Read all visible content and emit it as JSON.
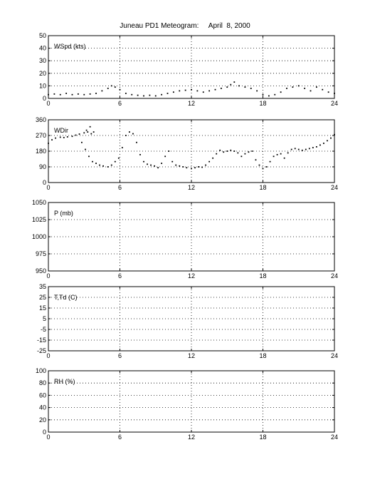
{
  "title": "Juneau PD1 Meteogram:     April  8, 2000",
  "chart_data": [
    {
      "type": "scatter",
      "label": "WSpd (kts)",
      "xlim": [
        0,
        24
      ],
      "xticks": [
        0,
        6,
        12,
        18,
        24
      ],
      "ylim": [
        0,
        50
      ],
      "yticks": [
        0,
        10,
        20,
        30,
        40,
        50
      ],
      "grid": true,
      "series": [
        {
          "points": [
            [
              0,
              3
            ],
            [
              0.5,
              3.5
            ],
            [
              1,
              3
            ],
            [
              1.5,
              4
            ],
            [
              2,
              3
            ],
            [
              2.5,
              3.5
            ],
            [
              3,
              3
            ],
            [
              3.5,
              3.5
            ],
            [
              4,
              4
            ],
            [
              4.5,
              6
            ],
            [
              5,
              8
            ],
            [
              5.3,
              10
            ],
            [
              5.6,
              9
            ],
            [
              6,
              7
            ],
            [
              6.5,
              4
            ],
            [
              7,
              3
            ],
            [
              7.5,
              2.5
            ],
            [
              8,
              2
            ],
            [
              8.5,
              2.5
            ],
            [
              9,
              2
            ],
            [
              9.5,
              3
            ],
            [
              10,
              4
            ],
            [
              10.5,
              5
            ],
            [
              11,
              6
            ],
            [
              11.5,
              6.5
            ],
            [
              12,
              7
            ],
            [
              12.5,
              6
            ],
            [
              13,
              5
            ],
            [
              13.5,
              6
            ],
            [
              14,
              7
            ],
            [
              14.5,
              8
            ],
            [
              15,
              9
            ],
            [
              15.3,
              11
            ],
            [
              15.6,
              13
            ],
            [
              16,
              10
            ],
            [
              16.5,
              9
            ],
            [
              17,
              8
            ],
            [
              17.5,
              6
            ],
            [
              18,
              3
            ],
            [
              18.5,
              2
            ],
            [
              19,
              3
            ],
            [
              19.5,
              5
            ],
            [
              20,
              8
            ],
            [
              20.5,
              9
            ],
            [
              21,
              10
            ],
            [
              21.5,
              8
            ],
            [
              22,
              6
            ],
            [
              22.5,
              9
            ],
            [
              23,
              7
            ],
            [
              23.5,
              5
            ],
            [
              24,
              4
            ]
          ]
        }
      ]
    },
    {
      "type": "scatter",
      "label": "WDir",
      "xlim": [
        0,
        24
      ],
      "xticks": [
        0,
        6,
        12,
        18,
        24
      ],
      "ylim": [
        0,
        360
      ],
      "yticks": [
        0,
        90,
        180,
        270,
        360
      ],
      "grid": true,
      "series": [
        {
          "points": [
            [
              0,
              225
            ],
            [
              0.3,
              245
            ],
            [
              0.6,
              255
            ],
            [
              1,
              260
            ],
            [
              1.3,
              258
            ],
            [
              1.6,
              262
            ],
            [
              2,
              265
            ],
            [
              2.3,
              272
            ],
            [
              2.6,
              278
            ],
            [
              3,
              285
            ],
            [
              3.3,
              290
            ],
            [
              3.6,
              280
            ],
            [
              2.8,
              230
            ],
            [
              3.1,
              190
            ],
            [
              3.4,
              150
            ],
            [
              3.7,
              120
            ],
            [
              3.2,
              300
            ],
            [
              3.5,
              320
            ],
            [
              3.8,
              290
            ],
            [
              4,
              110
            ],
            [
              4.3,
              100
            ],
            [
              4.6,
              95
            ],
            [
              5,
              90
            ],
            [
              5.3,
              100
            ],
            [
              5.6,
              120
            ],
            [
              5.9,
              140
            ],
            [
              6.2,
              200
            ],
            [
              6.5,
              270
            ],
            [
              6.8,
              290
            ],
            [
              7.1,
              280
            ],
            [
              7.4,
              230
            ],
            [
              7.7,
              160
            ],
            [
              8,
              120
            ],
            [
              8.3,
              105
            ],
            [
              8.6,
              100
            ],
            [
              8.9,
              95
            ],
            [
              9.2,
              85
            ],
            [
              9.5,
              110
            ],
            [
              9.8,
              150
            ],
            [
              10.1,
              180
            ],
            [
              10.4,
              120
            ],
            [
              10.7,
              100
            ],
            [
              11,
              95
            ],
            [
              11.3,
              90
            ],
            [
              11.6,
              85
            ],
            [
              12,
              80
            ],
            [
              12.3,
              85
            ],
            [
              12.6,
              90
            ],
            [
              12.9,
              88
            ],
            [
              13.2,
              100
            ],
            [
              13.5,
              120
            ],
            [
              13.8,
              140
            ],
            [
              14.1,
              165
            ],
            [
              14.4,
              185
            ],
            [
              14.7,
              175
            ],
            [
              15,
              180
            ],
            [
              15.3,
              185
            ],
            [
              15.6,
              180
            ],
            [
              15.9,
              170
            ],
            [
              16.2,
              150
            ],
            [
              16.5,
              165
            ],
            [
              16.8,
              175
            ],
            [
              17.1,
              180
            ],
            [
              17.4,
              130
            ],
            [
              17.7,
              100
            ],
            [
              18,
              80
            ],
            [
              18.3,
              90
            ],
            [
              18.6,
              120
            ],
            [
              18.9,
              150
            ],
            [
              19.2,
              160
            ],
            [
              19.5,
              165
            ],
            [
              19.8,
              140
            ],
            [
              20.1,
              170
            ],
            [
              20.4,
              190
            ],
            [
              20.7,
              195
            ],
            [
              21,
              190
            ],
            [
              21.3,
              185
            ],
            [
              21.6,
              190
            ],
            [
              21.9,
              195
            ],
            [
              22.2,
              200
            ],
            [
              22.5,
              205
            ],
            [
              22.8,
              215
            ],
            [
              23.1,
              225
            ],
            [
              23.4,
              240
            ],
            [
              23.7,
              255
            ],
            [
              24,
              275
            ]
          ]
        }
      ]
    },
    {
      "type": "scatter",
      "label": "P (mb)",
      "xlim": [
        0,
        24
      ],
      "xticks": [
        0,
        6,
        12,
        18,
        24
      ],
      "ylim": [
        950,
        1050
      ],
      "yticks": [
        950,
        975,
        1000,
        1025,
        1050
      ],
      "grid": true,
      "series": []
    },
    {
      "type": "scatter",
      "label": "T,Td (C)",
      "xlim": [
        0,
        24
      ],
      "xticks": [
        0,
        6,
        12,
        18,
        24
      ],
      "ylim": [
        -25,
        35
      ],
      "yticks": [
        -25,
        -15,
        -5,
        5,
        15,
        25,
        35
      ],
      "ytick_labels": [
        "-25",
        "-15",
        "-5",
        "5",
        "15",
        "25",
        "35"
      ],
      "grid": true,
      "series": []
    },
    {
      "type": "scatter",
      "label": "RH (%)",
      "xlim": [
        0,
        24
      ],
      "xticks": [
        0,
        6,
        12,
        18,
        24
      ],
      "ylim": [
        0,
        100
      ],
      "yticks": [
        0,
        20,
        40,
        60,
        80,
        100
      ],
      "grid": true,
      "series": []
    }
  ]
}
